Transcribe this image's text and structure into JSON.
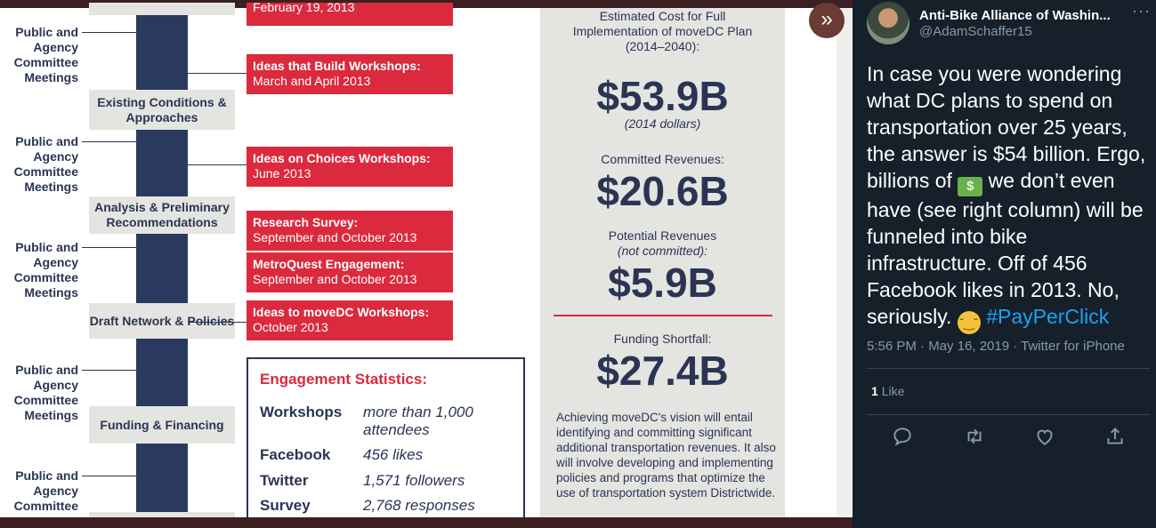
{
  "infographic": {
    "first_box_partial": {
      "title": "",
      "date": "February 19, 2013"
    },
    "stages": [
      "Existing Conditions & Approaches",
      "Analysis & Preliminary Recommendations",
      "Draft Network & Policies",
      "Funding & Financing"
    ],
    "public_agency": [
      "Public and Agency Committee Meetings",
      "Public and Agency Committee Meetings",
      "Public and Agency Committee Meetings",
      "Public and Agency Committee Meetings",
      "Public and Agency Committee"
    ],
    "workshops": [
      {
        "title": "Ideas that Build Workshops:",
        "date": "March and April 2013"
      },
      {
        "title": "Ideas on Choices Workshops:",
        "date": "June 2013"
      },
      {
        "title": "Research Survey:",
        "date": "September and October 2013"
      },
      {
        "title": "MetroQuest Engagement:",
        "date": "September and October 2013"
      },
      {
        "title": "Ideas to moveDC Workshops:",
        "date": "October 2013"
      }
    ],
    "engagement": {
      "title": "Engagement Statistics:",
      "rows": [
        {
          "label": "Workshops",
          "value": "more than 1,000 attendees"
        },
        {
          "label": "Facebook",
          "value": "456 likes"
        },
        {
          "label": "Twitter",
          "value": "1,571 followers"
        },
        {
          "label": "Survey",
          "value": "2,768 responses"
        }
      ]
    },
    "cost": {
      "estimated_label": "Estimated Cost for Full Implementation of moveDC Plan (2014–2040):",
      "estimated_value": "$53.9B",
      "estimated_note": "(2014 dollars)",
      "committed_label": "Committed Revenues:",
      "committed_value": "$20.6B",
      "potential_label": "Potential Revenues",
      "potential_note": "(not committed):",
      "potential_value": "$5.9B",
      "shortfall_label": "Funding Shortfall:",
      "shortfall_value": "$27.4B",
      "note": "Achieving moveDC's vision will entail identifying and committing significant additional transportation revenues. It also will involve developing and implementing policies and programs that optimize the use of transportation system Districtwide."
    }
  },
  "tweet": {
    "display_name": "Anti-Bike Alliance of Washin...",
    "handle": "@AdamSchaffer15",
    "text_part1": "In case you were wondering what DC plans to spend on transportation over 25 years, the answer is $54 billion. Ergo, billions of",
    "text_part2": "we don’t even have (see right column) will be funneled into bike infrastructure. Off of 456 Facebook likes in 2013. No, seriously.",
    "hashtag": "#PayPerClick",
    "meta": "5:56 PM · May 16, 2019 · Twitter for iPhone",
    "like_count": "1",
    "like_label": "Like"
  },
  "colors": {
    "accent_red": "#db2a3d",
    "navy": "#2a3a5e",
    "twitter_bg": "#15202b",
    "link_blue": "#1da1f2"
  },
  "icons": [
    "expand-arrows-icon",
    "more-icon",
    "reply-icon",
    "retweet-icon",
    "like-icon",
    "share-icon",
    "money-icon",
    "face-icon"
  ]
}
